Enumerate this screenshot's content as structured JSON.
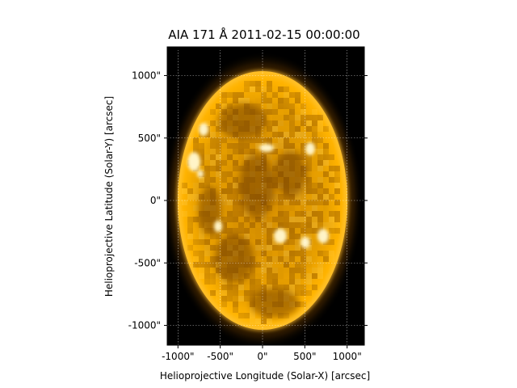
{
  "title": "AIA 171 Å 2011-02-15 00:00:00",
  "xlabel": "Helioprojective Longitude (Solar-X) [arcsec]",
  "ylabel": "Helioprojective Latitude (Solar-Y) [arcsec]",
  "xticks": [
    {
      "value": -1000,
      "label": "-1000\""
    },
    {
      "value": -500,
      "label": "-500\""
    },
    {
      "value": 0,
      "label": "0\""
    },
    {
      "value": 500,
      "label": "500\""
    },
    {
      "value": 1000,
      "label": "1000\""
    }
  ],
  "yticks": [
    {
      "value": 1000,
      "label": "1000\""
    },
    {
      "value": 500,
      "label": "500\""
    },
    {
      "value": 0,
      "label": "0\""
    },
    {
      "value": -500,
      "label": "-500\""
    },
    {
      "value": -1000,
      "label": "-1000\""
    }
  ],
  "colors": {
    "background": "#000000",
    "disk": "#ffb000",
    "disk_core": "#d08a00",
    "dark_region": "#6a3c00",
    "bright_region": "#fff4c8",
    "grid": "#ffffff"
  },
  "colormap": "sdoaia171",
  "grid": true
}
